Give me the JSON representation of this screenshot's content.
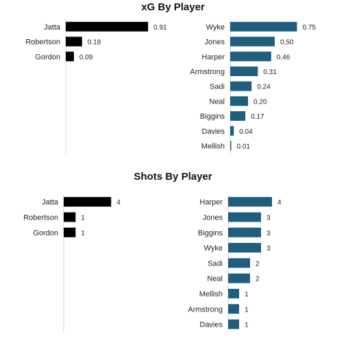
{
  "chart_data": [
    {
      "title": "xG By Player",
      "type": "bar",
      "panels": [
        {
          "categories": [
            "Jatta",
            "Robertson",
            "Gordon"
          ],
          "values": [
            0.91,
            0.18,
            0.09
          ],
          "color": "#000000",
          "decimals": 2
        },
        {
          "categories": [
            "Wyke",
            "Jones",
            "Harper",
            "Armstrong",
            "Sadi",
            "Neal",
            "Biggins",
            "Davies",
            "Mellish"
          ],
          "values": [
            0.75,
            0.5,
            0.46,
            0.31,
            0.24,
            0.2,
            0.17,
            0.04,
            0.01
          ],
          "color": "#1f5f7e",
          "decimals": 2
        }
      ]
    },
    {
      "title": "Shots By Player",
      "type": "bar",
      "panels": [
        {
          "categories": [
            "Jatta",
            "Robertson",
            "Gordon"
          ],
          "values": [
            4,
            1,
            1
          ],
          "color": "#000000",
          "decimals": 0
        },
        {
          "categories": [
            "Harper",
            "Jones",
            "Biggins",
            "Wyke",
            "Sadi",
            "Neal",
            "Mellish",
            "Armstrong",
            "Davies"
          ],
          "values": [
            4,
            3,
            3,
            3,
            2,
            2,
            1,
            1,
            1
          ],
          "color": "#1f5f7e",
          "decimals": 0
        }
      ]
    }
  ]
}
